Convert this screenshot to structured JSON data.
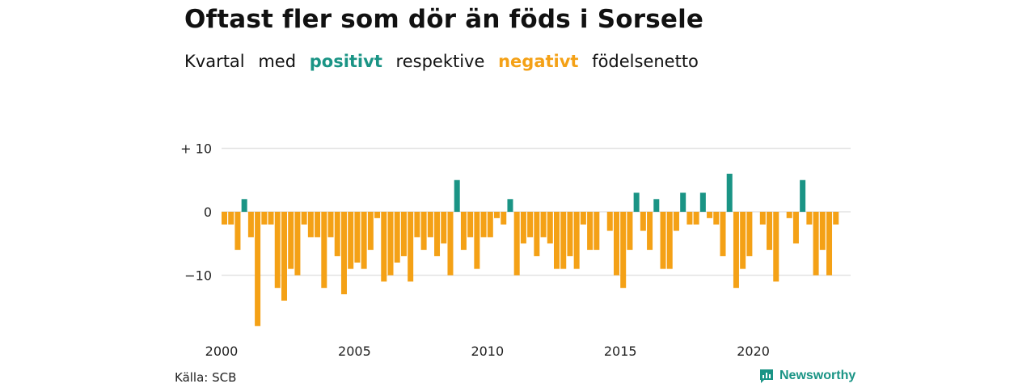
{
  "title": "Oftast fler som dör än föds i Sorsele",
  "subtitle": {
    "w1": "Kvartal",
    "w2": "med",
    "positive_word": "positivt",
    "w3": "respektive",
    "negative_word": "negativt",
    "w4": "födelsenetto"
  },
  "source": "Källa: SCB",
  "brand": "Newsworthy",
  "colors": {
    "positive": "#1a9485",
    "negative": "#f4a116",
    "grid": "#e3e3e3"
  },
  "chart_data": {
    "type": "bar",
    "x_start": 2000,
    "periods_per_year": 4,
    "x_ticks": [
      "2000",
      "2005",
      "2010",
      "2015",
      "2020"
    ],
    "y_ticks": [
      {
        "value": 10,
        "label": "+ 10"
      },
      {
        "value": 0,
        "label": "0"
      },
      {
        "value": -10,
        "label": "−10"
      }
    ],
    "ylim": [
      -18,
      10
    ],
    "grid": true,
    "values": [
      -2,
      -2,
      -6,
      2,
      -4,
      -18,
      -2,
      -2,
      -12,
      -14,
      -9,
      -10,
      -2,
      -4,
      -4,
      -12,
      -4,
      -7,
      -13,
      -9,
      -8,
      -9,
      -6,
      -1,
      -11,
      -10,
      -8,
      -7,
      -11,
      -4,
      -6,
      -4,
      -7,
      -5,
      -10,
      5,
      -6,
      -4,
      -9,
      -4,
      -4,
      -1,
      -2,
      2,
      -10,
      -5,
      -4,
      -7,
      -4,
      -5,
      -9,
      -9,
      -7,
      -9,
      -2,
      -6,
      -6,
      0,
      -3,
      -10,
      -12,
      -6,
      3,
      -3,
      -6,
      2,
      -9,
      -9,
      -3,
      3,
      -2,
      -2,
      3,
      -1,
      -2,
      -7,
      6,
      -12,
      -9,
      -7,
      0,
      -2,
      -6,
      -11,
      0,
      -1,
      -5,
      5,
      -2,
      -10,
      -6,
      -10,
      -2
    ]
  }
}
